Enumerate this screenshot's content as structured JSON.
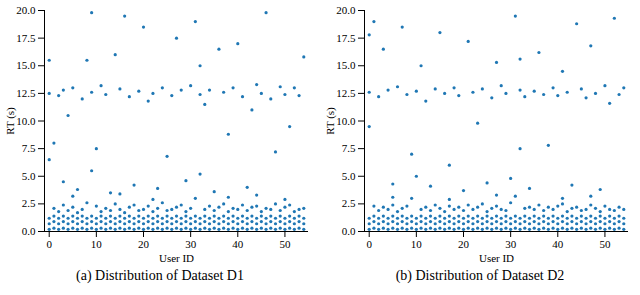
{
  "chart_data": [
    {
      "type": "scatter",
      "title": "(a) Distribution of Dataset D1",
      "xlabel": "User ID",
      "ylabel": "RT (s)",
      "color": "#1f77b4",
      "grid": false,
      "xlim": [
        -1,
        55
      ],
      "ylim": [
        0,
        20
      ],
      "xticks": [
        0,
        10,
        20,
        30,
        40,
        50
      ],
      "yticks": [
        {
          "value": 0,
          "label": "0.0"
        },
        2.5,
        {
          "value": 5,
          "label": "5.0"
        },
        7.5,
        {
          "value": 10,
          "label": "10.0"
        },
        12.5,
        {
          "value": 15,
          "label": "15.0"
        },
        17.5,
        {
          "value": 20,
          "label": "20.0"
        }
      ],
      "x": [
        0,
        0,
        0,
        0,
        1,
        1,
        1,
        1,
        2,
        2,
        2,
        2,
        3,
        3,
        3,
        3,
        4,
        4,
        4,
        4,
        5,
        5,
        5,
        5,
        6,
        6,
        6,
        6,
        7,
        7,
        7,
        7,
        8,
        8,
        8,
        8,
        9,
        9,
        9,
        9,
        10,
        10,
        10,
        10,
        11,
        11,
        11,
        11,
        12,
        12,
        12,
        12,
        13,
        13,
        13,
        13,
        14,
        14,
        14,
        14,
        15,
        15,
        15,
        15,
        16,
        16,
        16,
        16,
        17,
        17,
        17,
        17,
        18,
        18,
        18,
        18,
        19,
        19,
        19,
        19,
        20,
        20,
        20,
        20,
        21,
        21,
        21,
        21,
        22,
        22,
        22,
        22,
        23,
        23,
        23,
        23,
        24,
        24,
        24,
        24,
        25,
        25,
        25,
        25,
        26,
        26,
        26,
        26,
        27,
        27,
        27,
        27,
        28,
        28,
        28,
        28,
        29,
        29,
        29,
        29,
        30,
        30,
        30,
        30,
        31,
        31,
        31,
        31,
        32,
        32,
        32,
        32,
        33,
        33,
        33,
        33,
        34,
        34,
        34,
        34,
        35,
        35,
        35,
        35,
        36,
        36,
        36,
        36,
        37,
        37,
        37,
        37,
        38,
        38,
        38,
        38,
        39,
        39,
        39,
        39,
        40,
        40,
        40,
        40,
        41,
        41,
        41,
        41,
        42,
        42,
        42,
        42,
        43,
        43,
        43,
        43,
        44,
        44,
        44,
        44,
        45,
        45,
        45,
        45,
        46,
        46,
        46,
        46,
        47,
        47,
        47,
        47,
        48,
        48,
        48,
        48,
        49,
        49,
        49,
        49,
        50,
        50,
        50,
        50,
        51,
        51,
        51,
        51,
        52,
        52,
        52,
        52,
        53,
        53,
        53,
        53,
        54,
        54,
        54,
        54,
        0,
        0,
        1,
        2,
        3,
        3,
        4,
        5,
        6,
        7,
        8,
        9,
        9,
        10,
        11,
        12,
        13,
        14,
        15,
        16,
        17,
        18,
        19,
        20,
        21,
        22,
        23,
        24,
        25,
        26,
        27,
        28,
        29,
        30,
        31,
        32,
        32,
        33,
        34,
        35,
        36,
        37,
        38,
        39,
        40,
        41,
        42,
        43,
        44,
        45,
        46,
        47,
        48,
        49,
        50,
        51,
        52,
        53,
        54,
        5,
        15,
        22,
        38,
        44,
        50
      ],
      "values": [
        0.2,
        0.7,
        1.2,
        6.5,
        0.3,
        0.9,
        1.4,
        2.1,
        0.2,
        0.7,
        1.2,
        1.8,
        0.3,
        0.9,
        1.4,
        2.4,
        0.2,
        0.7,
        1.2,
        1.9,
        0.3,
        0.9,
        1.4,
        2.2,
        0.2,
        0.7,
        1.2,
        1.7,
        0.3,
        0.9,
        1.4,
        2.0,
        0.2,
        0.7,
        1.2,
        2.6,
        0.3,
        0.9,
        1.4,
        5.5,
        0.2,
        0.7,
        1.2,
        2.3,
        0.3,
        0.9,
        1.4,
        1.8,
        0.2,
        0.7,
        1.2,
        2.1,
        0.3,
        0.9,
        1.4,
        1.9,
        0.2,
        0.7,
        1.2,
        2.5,
        0.3,
        0.9,
        1.4,
        2.0,
        0.2,
        0.7,
        1.2,
        1.7,
        0.3,
        0.9,
        1.4,
        2.2,
        0.2,
        0.7,
        1.2,
        2.4,
        0.3,
        0.9,
        1.4,
        1.9,
        0.2,
        0.7,
        1.2,
        2.0,
        0.3,
        0.9,
        1.4,
        2.3,
        0.2,
        0.7,
        1.2,
        1.8,
        0.3,
        0.9,
        1.4,
        2.1,
        0.2,
        0.7,
        1.2,
        2.6,
        0.3,
        0.9,
        1.4,
        1.9,
        0.2,
        0.7,
        1.2,
        2.0,
        0.3,
        0.9,
        1.4,
        2.2,
        0.2,
        0.7,
        1.2,
        2.4,
        0.3,
        0.9,
        1.4,
        1.8,
        0.2,
        0.7,
        1.2,
        2.1,
        0.3,
        0.9,
        1.4,
        3.0,
        0.2,
        0.7,
        1.2,
        5.2,
        0.3,
        0.9,
        1.4,
        2.0,
        0.2,
        0.7,
        1.2,
        2.3,
        0.3,
        0.9,
        1.4,
        1.9,
        0.2,
        0.7,
        1.2,
        2.2,
        0.3,
        0.9,
        1.4,
        2.5,
        0.2,
        0.7,
        1.2,
        1.8,
        0.3,
        0.9,
        1.4,
        2.1,
        0.2,
        0.7,
        1.2,
        2.0,
        0.3,
        0.9,
        1.4,
        2.4,
        0.2,
        0.7,
        1.2,
        1.9,
        0.3,
        0.9,
        1.4,
        2.2,
        0.2,
        0.7,
        1.2,
        2.3,
        0.3,
        0.9,
        1.4,
        1.8,
        0.2,
        0.7,
        1.2,
        2.1,
        0.3,
        0.9,
        1.4,
        2.0,
        0.2,
        0.7,
        1.2,
        2.5,
        0.3,
        0.9,
        1.4,
        1.9,
        0.2,
        0.7,
        1.2,
        2.2,
        0.3,
        0.9,
        1.4,
        2.4,
        0.2,
        0.7,
        1.2,
        1.8,
        0.3,
        0.9,
        1.4,
        2.0,
        0.2,
        0.7,
        1.2,
        2.1,
        12.5,
        15.5,
        8.0,
        12.3,
        4.5,
        12.8,
        10.5,
        13.0,
        3.8,
        12.0,
        15.5,
        19.8,
        12.6,
        7.5,
        13.2,
        12.4,
        3.5,
        16.0,
        12.9,
        19.5,
        12.2,
        4.2,
        12.7,
        18.5,
        11.8,
        12.5,
        3.9,
        13.0,
        6.8,
        12.3,
        17.5,
        12.8,
        4.6,
        13.2,
        19.0,
        12.4,
        15.0,
        11.5,
        12.8,
        3.6,
        16.5,
        12.6,
        8.8,
        13.0,
        17.0,
        12.2,
        4.0,
        11.0,
        13.3,
        12.5,
        19.8,
        12.0,
        7.2,
        13.1,
        12.4,
        9.5,
        13.0,
        12.3,
        15.8,
        3.2,
        3.4,
        2.9,
        3.1,
        3.3,
        2.9
      ]
    },
    {
      "type": "scatter",
      "title": "(b) Distribution of Dataset D2",
      "xlabel": "User ID",
      "ylabel": "RT (s)",
      "color": "#1f77b4",
      "grid": false,
      "xlim": [
        -1,
        55
      ],
      "ylim": [
        0,
        20
      ],
      "xticks": [
        0,
        10,
        20,
        30,
        40,
        50
      ],
      "yticks": [
        {
          "value": 0,
          "label": "0.0"
        },
        2.5,
        {
          "value": 5,
          "label": "5.0"
        },
        7.5,
        {
          "value": 10,
          "label": "10.0"
        },
        12.5,
        {
          "value": 15,
          "label": "15.0"
        },
        17.5,
        {
          "value": 20,
          "label": "20.0"
        }
      ],
      "x": [
        0,
        0,
        0,
        0,
        1,
        1,
        1,
        1,
        2,
        2,
        2,
        2,
        3,
        3,
        3,
        3,
        4,
        4,
        4,
        4,
        5,
        5,
        5,
        5,
        6,
        6,
        6,
        6,
        7,
        7,
        7,
        7,
        8,
        8,
        8,
        8,
        9,
        9,
        9,
        9,
        10,
        10,
        10,
        10,
        11,
        11,
        11,
        11,
        12,
        12,
        12,
        12,
        13,
        13,
        13,
        13,
        14,
        14,
        14,
        14,
        15,
        15,
        15,
        15,
        16,
        16,
        16,
        16,
        17,
        17,
        17,
        17,
        18,
        18,
        18,
        18,
        19,
        19,
        19,
        19,
        20,
        20,
        20,
        20,
        21,
        21,
        21,
        21,
        22,
        22,
        22,
        22,
        23,
        23,
        23,
        23,
        24,
        24,
        24,
        24,
        25,
        25,
        25,
        25,
        26,
        26,
        26,
        26,
        27,
        27,
        27,
        27,
        28,
        28,
        28,
        28,
        29,
        29,
        29,
        29,
        30,
        30,
        30,
        30,
        31,
        31,
        31,
        31,
        32,
        32,
        32,
        32,
        33,
        33,
        33,
        33,
        34,
        34,
        34,
        34,
        35,
        35,
        35,
        35,
        36,
        36,
        36,
        36,
        37,
        37,
        37,
        37,
        38,
        38,
        38,
        38,
        39,
        39,
        39,
        39,
        40,
        40,
        40,
        40,
        41,
        41,
        41,
        41,
        42,
        42,
        42,
        42,
        43,
        43,
        43,
        43,
        44,
        44,
        44,
        44,
        45,
        45,
        45,
        45,
        46,
        46,
        46,
        46,
        47,
        47,
        47,
        47,
        48,
        48,
        48,
        48,
        49,
        49,
        49,
        49,
        50,
        50,
        50,
        50,
        51,
        51,
        51,
        51,
        52,
        52,
        52,
        52,
        53,
        53,
        53,
        53,
        54,
        54,
        54,
        54,
        0,
        0,
        1,
        2,
        3,
        4,
        5,
        6,
        7,
        8,
        9,
        10,
        11,
        12,
        13,
        14,
        15,
        16,
        17,
        18,
        19,
        20,
        21,
        22,
        23,
        24,
        25,
        26,
        27,
        28,
        29,
        30,
        31,
        32,
        32,
        33,
        34,
        35,
        36,
        37,
        38,
        39,
        40,
        41,
        42,
        43,
        44,
        45,
        46,
        47,
        48,
        49,
        50,
        51,
        52,
        53,
        54,
        5,
        17,
        27,
        41,
        47
      ],
      "values": [
        0.2,
        0.7,
        1.2,
        9.5,
        0.3,
        0.9,
        1.4,
        2.3,
        0.2,
        0.7,
        1.2,
        1.9,
        0.3,
        0.9,
        1.4,
        2.2,
        0.2,
        0.7,
        1.2,
        2.0,
        0.3,
        0.9,
        1.4,
        2.4,
        0.2,
        0.7,
        1.2,
        1.8,
        0.3,
        0.9,
        1.4,
        2.1,
        0.2,
        0.7,
        1.2,
        2.3,
        0.3,
        0.9,
        1.4,
        3.0,
        0.2,
        0.7,
        1.2,
        5.0,
        0.3,
        0.9,
        1.4,
        2.0,
        0.2,
        0.7,
        1.2,
        2.2,
        0.3,
        0.9,
        1.4,
        1.9,
        0.2,
        0.7,
        1.2,
        2.4,
        0.3,
        0.9,
        1.4,
        2.1,
        0.2,
        0.7,
        1.2,
        1.8,
        0.3,
        0.9,
        1.4,
        2.3,
        0.2,
        0.7,
        1.2,
        2.0,
        0.3,
        0.9,
        1.4,
        2.2,
        0.2,
        0.7,
        1.2,
        1.9,
        0.3,
        0.9,
        1.4,
        2.4,
        0.2,
        0.7,
        1.2,
        2.0,
        0.3,
        0.9,
        1.4,
        2.2,
        0.2,
        0.7,
        1.2,
        2.5,
        0.3,
        0.9,
        1.4,
        1.8,
        0.2,
        0.7,
        1.2,
        2.1,
        0.3,
        0.9,
        1.4,
        2.3,
        0.2,
        0.7,
        1.2,
        2.0,
        0.3,
        0.9,
        1.4,
        1.9,
        0.2,
        0.7,
        1.2,
        2.6,
        0.3,
        0.9,
        1.4,
        3.2,
        0.2,
        0.7,
        1.2,
        7.5,
        0.3,
        0.9,
        1.4,
        2.1,
        0.2,
        0.7,
        1.2,
        2.2,
        0.3,
        0.9,
        1.4,
        2.0,
        0.2,
        0.7,
        1.2,
        2.4,
        0.3,
        0.9,
        1.4,
        1.9,
        0.2,
        0.7,
        1.2,
        2.2,
        0.3,
        0.9,
        1.4,
        2.0,
        0.2,
        0.7,
        1.2,
        2.3,
        0.3,
        0.9,
        1.4,
        2.5,
        0.2,
        0.7,
        1.2,
        1.8,
        0.3,
        0.9,
        1.4,
        2.1,
        0.2,
        0.7,
        1.2,
        2.2,
        0.3,
        0.9,
        1.4,
        1.9,
        0.2,
        0.7,
        1.2,
        2.0,
        0.3,
        0.9,
        1.4,
        2.4,
        0.2,
        0.7,
        1.2,
        2.1,
        0.3,
        0.9,
        1.4,
        1.8,
        0.2,
        0.7,
        1.2,
        2.3,
        0.3,
        0.9,
        1.4,
        2.0,
        0.2,
        0.7,
        1.2,
        1.9,
        0.3,
        0.9,
        1.4,
        2.2,
        0.2,
        0.7,
        1.2,
        2.0,
        12.6,
        17.8,
        19.0,
        12.2,
        16.5,
        12.8,
        4.3,
        13.1,
        18.5,
        12.4,
        7.0,
        12.7,
        15.0,
        11.8,
        4.1,
        12.9,
        18.0,
        12.5,
        6.0,
        13.0,
        12.3,
        3.7,
        17.2,
        12.6,
        9.8,
        12.9,
        4.4,
        12.1,
        15.3,
        13.2,
        12.5,
        4.8,
        19.5,
        12.8,
        15.6,
        12.2,
        3.9,
        12.7,
        16.2,
        12.4,
        7.8,
        13.0,
        12.3,
        14.5,
        12.6,
        4.2,
        18.8,
        12.9,
        12.1,
        16.8,
        12.5,
        3.8,
        13.2,
        11.6,
        19.3,
        12.4,
        13.0,
        3.1,
        2.9,
        3.3,
        3.0,
        3.2
      ]
    }
  ]
}
